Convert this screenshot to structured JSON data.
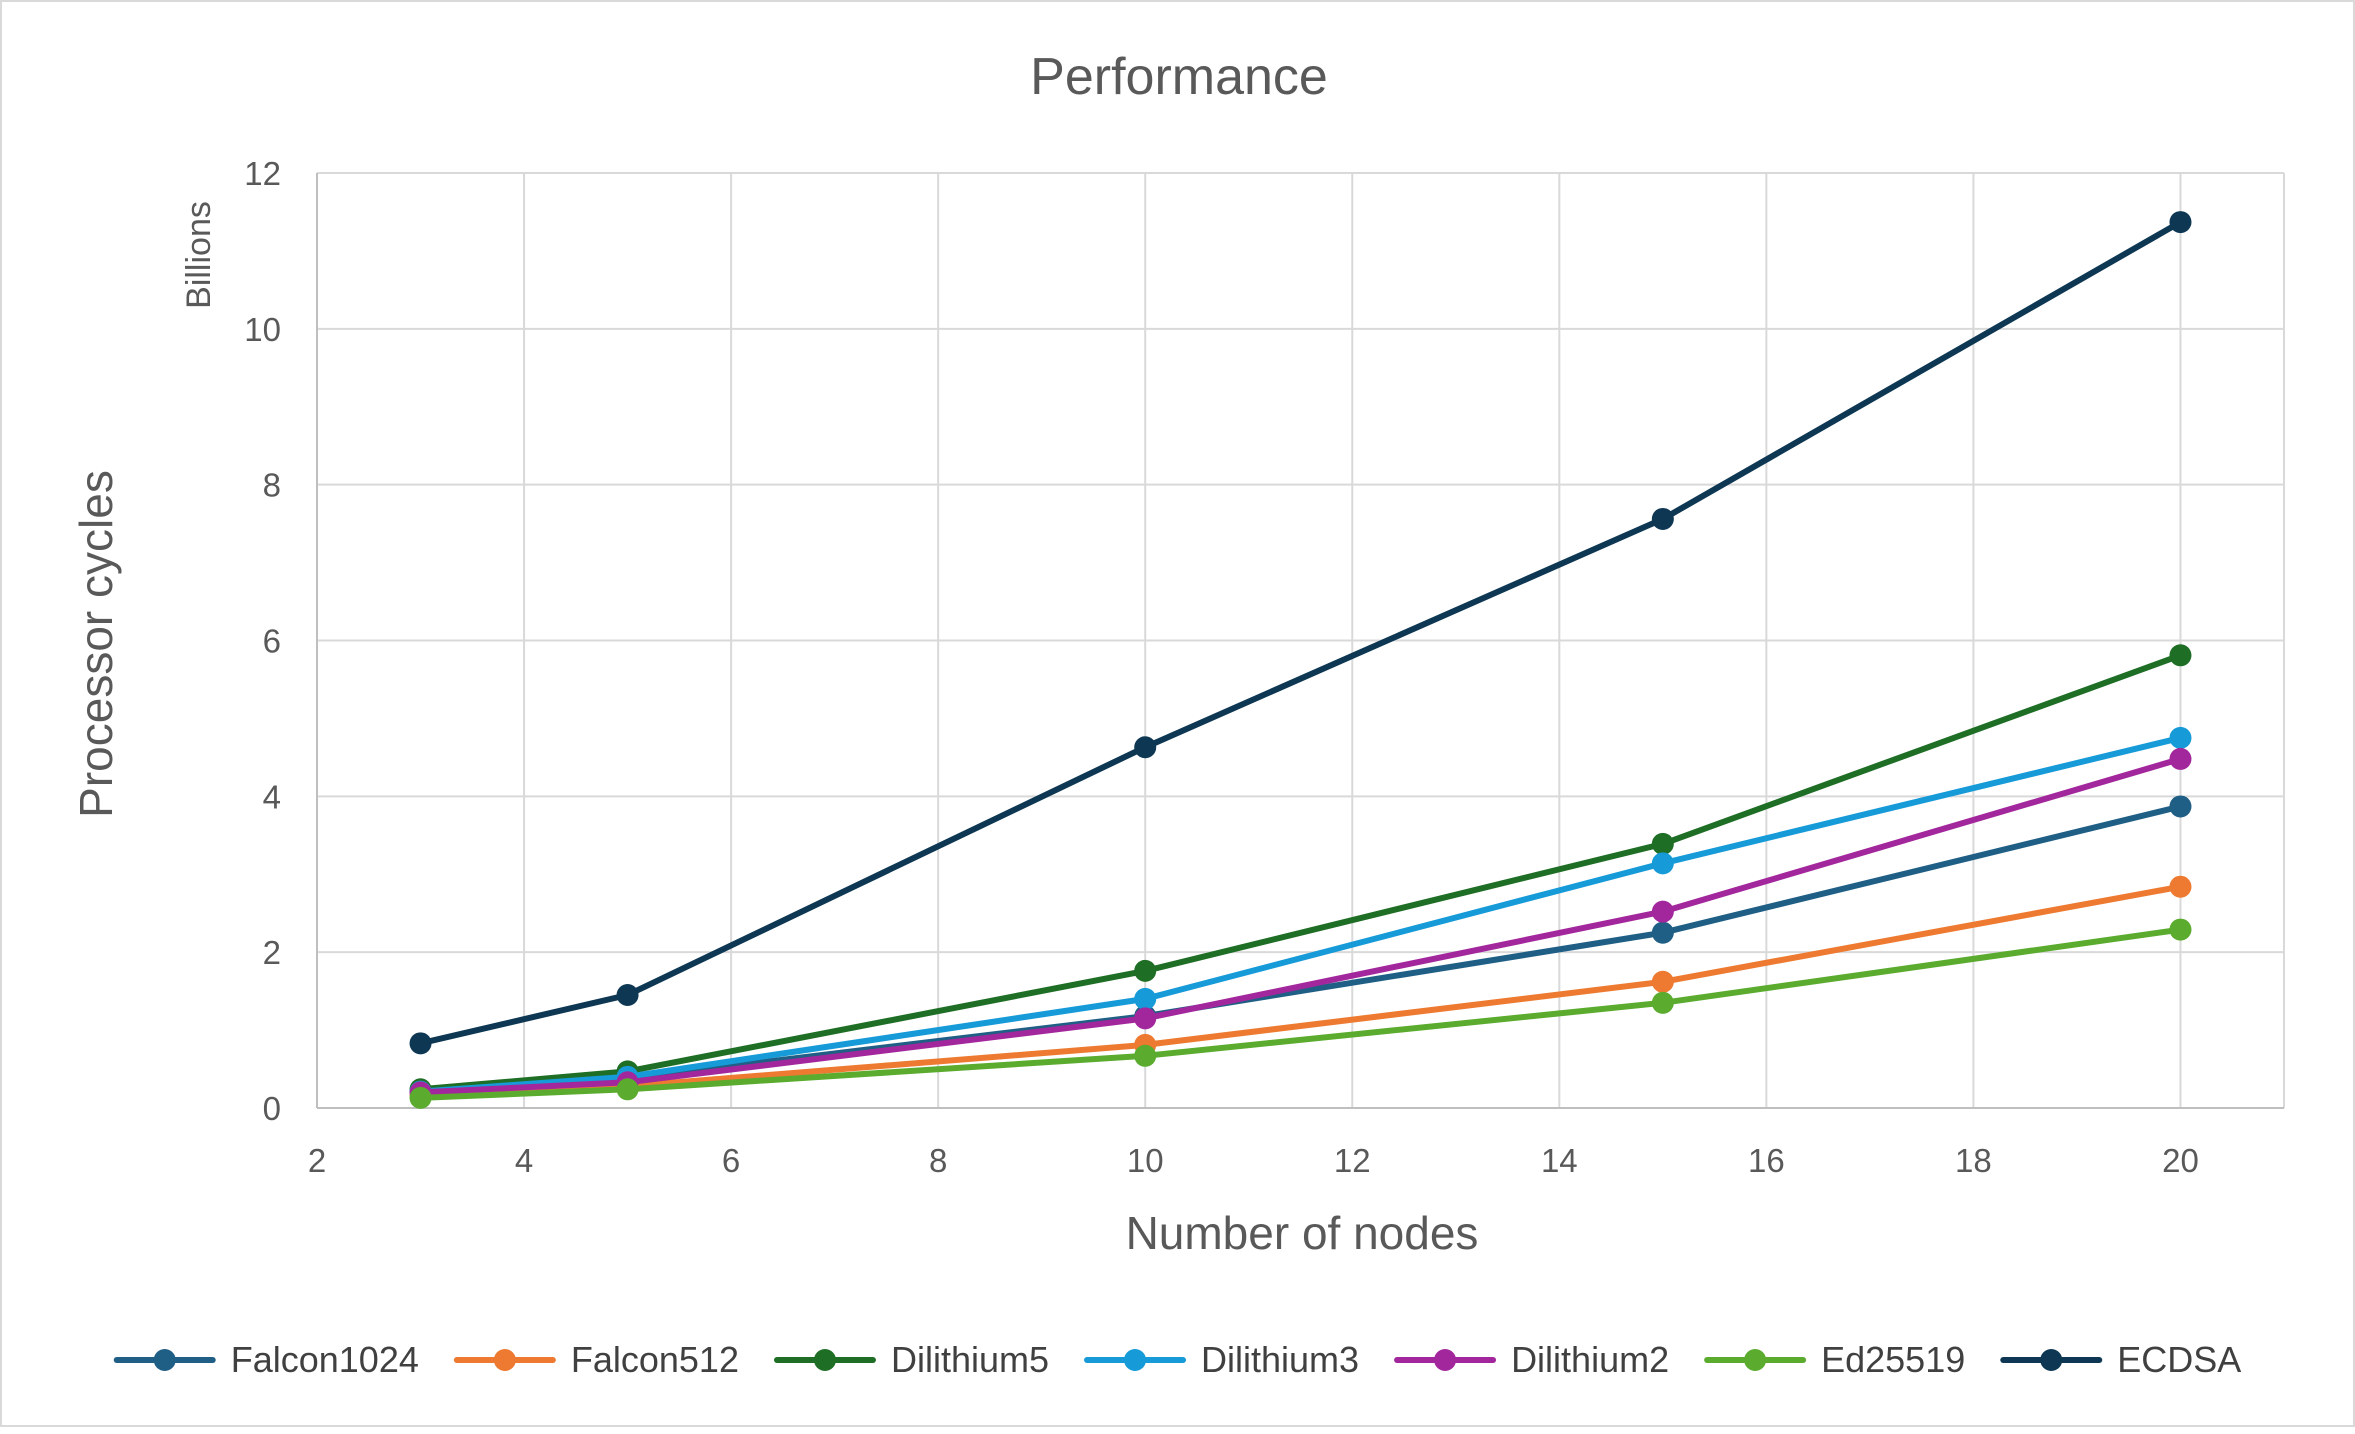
{
  "chart_data": {
    "type": "line",
    "title": "Performance",
    "xlabel": "Number of nodes",
    "ylabel": "Processor cycles",
    "y_units_label": "Billions",
    "x": [
      3,
      5,
      10,
      15,
      20
    ],
    "xlim": [
      2,
      21
    ],
    "ylim": [
      0,
      12
    ],
    "x_ticks": [
      2,
      4,
      6,
      8,
      10,
      12,
      14,
      16,
      18,
      20
    ],
    "y_ticks": [
      0,
      2,
      4,
      6,
      8,
      10,
      12
    ],
    "grid": true,
    "legend_position": "bottom",
    "series": [
      {
        "name": "Falcon1024",
        "color": "#1f5f85",
        "values": [
          0.23,
          0.38,
          1.18,
          2.25,
          3.87
        ]
      },
      {
        "name": "Falcon512",
        "color": "#ed7a30",
        "values": [
          0.17,
          0.28,
          0.81,
          1.62,
          2.84
        ]
      },
      {
        "name": "Dilithium5",
        "color": "#1e6e25",
        "values": [
          0.24,
          0.47,
          1.76,
          3.39,
          5.81
        ]
      },
      {
        "name": "Dilithium3",
        "color": "#169ad8",
        "values": [
          0.21,
          0.4,
          1.4,
          3.14,
          4.75
        ]
      },
      {
        "name": "Dilithium2",
        "color": "#a3279c",
        "values": [
          0.2,
          0.33,
          1.15,
          2.52,
          4.48
        ]
      },
      {
        "name": "Ed25519",
        "color": "#5aab2e",
        "values": [
          0.13,
          0.24,
          0.67,
          1.35,
          2.29
        ]
      },
      {
        "name": "ECDSA",
        "color": "#0d3752",
        "values": [
          0.83,
          1.45,
          4.63,
          7.56,
          11.37
        ]
      }
    ]
  }
}
